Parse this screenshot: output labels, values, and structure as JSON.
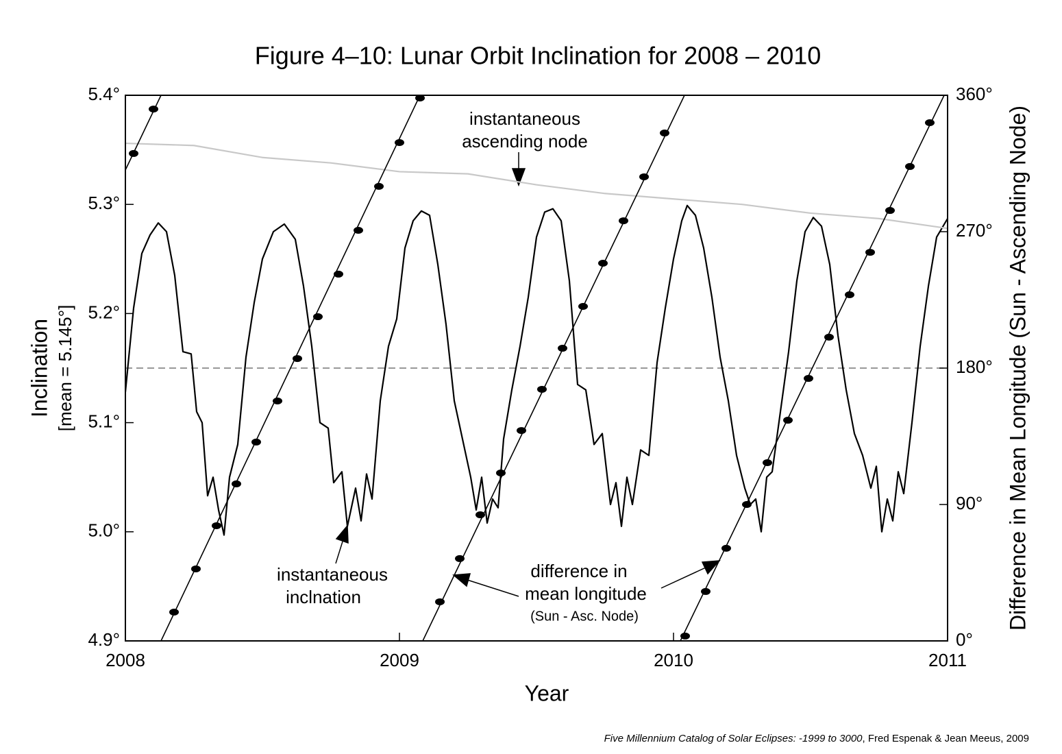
{
  "chart_data": {
    "type": "line",
    "title": "Figure 4–10: Lunar Orbit Inclination for 2008 – 2010",
    "xlabel": "Year",
    "ylabel": [
      "Inclination",
      "[mean = 5.145°]"
    ],
    "y2label": "Difference in Mean Longitude (Sun - Ascending Node)",
    "xlim": [
      2008,
      2011
    ],
    "xticks": [
      2008,
      2009,
      2010,
      2011
    ],
    "ylim": [
      4.9,
      5.4
    ],
    "yticks": [
      {
        "value": 4.9,
        "label": "4.9°"
      },
      {
        "value": 5.0,
        "label": "5.0°"
      },
      {
        "value": 5.1,
        "label": "5.1°"
      },
      {
        "value": 5.2,
        "label": "5.2°"
      },
      {
        "value": 5.3,
        "label": "5.3°"
      },
      {
        "value": 5.4,
        "label": "5.4°"
      }
    ],
    "y2lim": [
      0,
      360
    ],
    "y2ticks": [
      {
        "value": 0,
        "label": "0°"
      },
      {
        "value": 90,
        "label": "90°"
      },
      {
        "value": 180,
        "label": "180°"
      },
      {
        "value": 270,
        "label": "270°"
      },
      {
        "value": 360,
        "label": "360°"
      }
    ],
    "reference_line": 5.15,
    "series": [
      {
        "color": "#000000",
        "x": [
          2008.0,
          2008.03,
          2008.06,
          2008.09,
          2008.12,
          2008.15,
          2008.18,
          2008.21,
          2008.24,
          2008.26,
          2008.28,
          2008.3,
          2008.32,
          2008.34,
          2008.36,
          2008.38,
          2008.41,
          2008.44,
          2008.47,
          2008.5,
          2008.54,
          2008.58,
          2008.62,
          2008.65,
          2008.68,
          2008.71,
          2008.74,
          2008.76,
          2008.79,
          2008.81,
          2008.84,
          2008.86,
          2008.88,
          2008.9,
          2008.93,
          2008.96,
          2008.99,
          2009.02,
          2009.05,
          2009.08,
          2009.11,
          2009.14,
          2009.17,
          2009.2,
          2009.23,
          2009.26,
          2009.28,
          2009.3,
          2009.32,
          2009.34,
          2009.36,
          2009.38,
          2009.41,
          2009.44,
          2009.47,
          2009.5,
          2009.53,
          2009.56,
          2009.59,
          2009.62,
          2009.65,
          2009.68,
          2009.71,
          2009.74,
          2009.77,
          2009.79,
          2009.81,
          2009.83,
          2009.85,
          2009.88,
          2009.91,
          2009.94,
          2009.97,
          2010.0,
          2010.03,
          2010.05,
          2010.08,
          2010.11,
          2010.14,
          2010.17,
          2010.2,
          2010.23,
          2010.26,
          2010.28,
          2010.3,
          2010.32,
          2010.34,
          2010.36,
          2010.39,
          2010.42,
          2010.45,
          2010.48,
          2010.51,
          2010.54,
          2010.57,
          2010.6,
          2010.63,
          2010.66,
          2010.69,
          2010.72,
          2010.74,
          2010.76,
          2010.78,
          2010.8,
          2010.82,
          2010.84,
          2010.87,
          2010.9,
          2010.93,
          2010.96,
          2011.0
        ],
        "values": [
          5.128,
          5.205,
          5.255,
          5.272,
          5.283,
          5.275,
          5.235,
          5.165,
          5.163,
          5.11,
          5.1,
          5.033,
          5.05,
          5.02,
          4.997,
          5.05,
          5.08,
          5.16,
          5.21,
          5.25,
          5.275,
          5.282,
          5.268,
          5.225,
          5.17,
          5.1,
          5.095,
          5.045,
          5.055,
          5.005,
          5.04,
          5.01,
          5.053,
          5.03,
          5.12,
          5.17,
          5.195,
          5.26,
          5.285,
          5.294,
          5.29,
          5.245,
          5.19,
          5.12,
          5.085,
          5.05,
          5.02,
          5.05,
          5.008,
          5.03,
          5.022,
          5.085,
          5.13,
          5.17,
          5.215,
          5.27,
          5.293,
          5.296,
          5.285,
          5.23,
          5.135,
          5.13,
          5.08,
          5.09,
          5.025,
          5.045,
          5.005,
          5.05,
          5.025,
          5.075,
          5.07,
          5.155,
          5.205,
          5.25,
          5.285,
          5.299,
          5.29,
          5.26,
          5.215,
          5.16,
          5.12,
          5.07,
          5.04,
          5.025,
          5.03,
          5.0,
          5.05,
          5.055,
          5.11,
          5.165,
          5.23,
          5.275,
          5.288,
          5.28,
          5.245,
          5.18,
          5.13,
          5.09,
          5.07,
          5.04,
          5.06,
          5.0,
          5.03,
          5.01,
          5.055,
          5.035,
          5.1,
          5.17,
          5.225,
          5.27,
          5.287
        ]
      },
      {
        "color": "#c8c8c8",
        "x": [
          2008.0,
          2008.25,
          2008.5,
          2008.75,
          2009.0,
          2009.25,
          2009.5,
          2009.75,
          2010.0,
          2010.25,
          2010.5,
          2010.75,
          2011.0
        ],
        "values": [
          5.356,
          5.354,
          5.343,
          5.338,
          5.33,
          5.328,
          5.318,
          5.31,
          5.305,
          5.3,
          5.292,
          5.287,
          5.278
        ]
      },
      {
        "color": "#000000",
        "axis": "y2",
        "x": [
          2008.0,
          2008.13,
          null,
          2008.13,
          2009.075,
          null,
          2009.085,
          2010.04,
          null,
          2010.025,
          2010.9875
        ],
        "values": [
          310.7,
          360,
          null,
          0,
          360,
          null,
          0,
          360,
          null,
          0,
          360
        ]
      },
      {
        "color": "#000000",
        "axis": "y2",
        "marker": "ellipse",
        "x": [
          2008.03,
          2008.1025,
          2008.1775,
          2008.2575,
          2008.3325,
          2008.405,
          2008.4775,
          2008.555,
          2008.6275,
          2008.7025,
          2008.7775,
          2008.85,
          2008.925,
          2009.0,
          2009.075,
          2009.1475,
          2009.22,
          2009.295,
          2009.37,
          2009.445,
          2009.52,
          2009.595,
          2009.67,
          2009.7425,
          2009.8175,
          2009.8925,
          2009.9675,
          2010.0425,
          2010.1175,
          2010.1925,
          2010.2675,
          2010.3425,
          2010.4175,
          2010.4925,
          2010.5675,
          2010.6425,
          2010.7175,
          2010.79,
          2010.8625,
          2010.935
        ],
        "values": [
          321.6,
          350.9,
          19.0,
          47.5,
          76.0,
          103.6,
          131.2,
          158.3,
          186.3,
          213.9,
          242.0,
          270.9,
          299.9,
          328.8,
          358.2,
          25.8,
          54.3,
          83.2,
          110.8,
          138.8,
          166.0,
          193.1,
          220.7,
          249.2,
          277.2,
          306.2,
          335.1,
          3.2,
          32.6,
          61.1,
          90.0,
          117.6,
          145.6,
          173.2,
          200.4,
          228.4,
          256.4,
          284.0,
          313.0,
          341.9
        ]
      }
    ],
    "annotations": [
      {
        "lines": [
          "instantaneous",
          "ascending node"
        ]
      },
      {
        "lines": [
          "instantaneous",
          "inclnation"
        ]
      },
      {
        "lines": [
          "difference in",
          "mean longitude",
          "(Sun - Asc. Node)"
        ]
      }
    ],
    "footer": {
      "italic": "Five Millennium Catalog of Solar Eclipses: -1999 to 3000",
      "rest": ", Fred Espenak & Jean Meeus, 2009"
    }
  }
}
